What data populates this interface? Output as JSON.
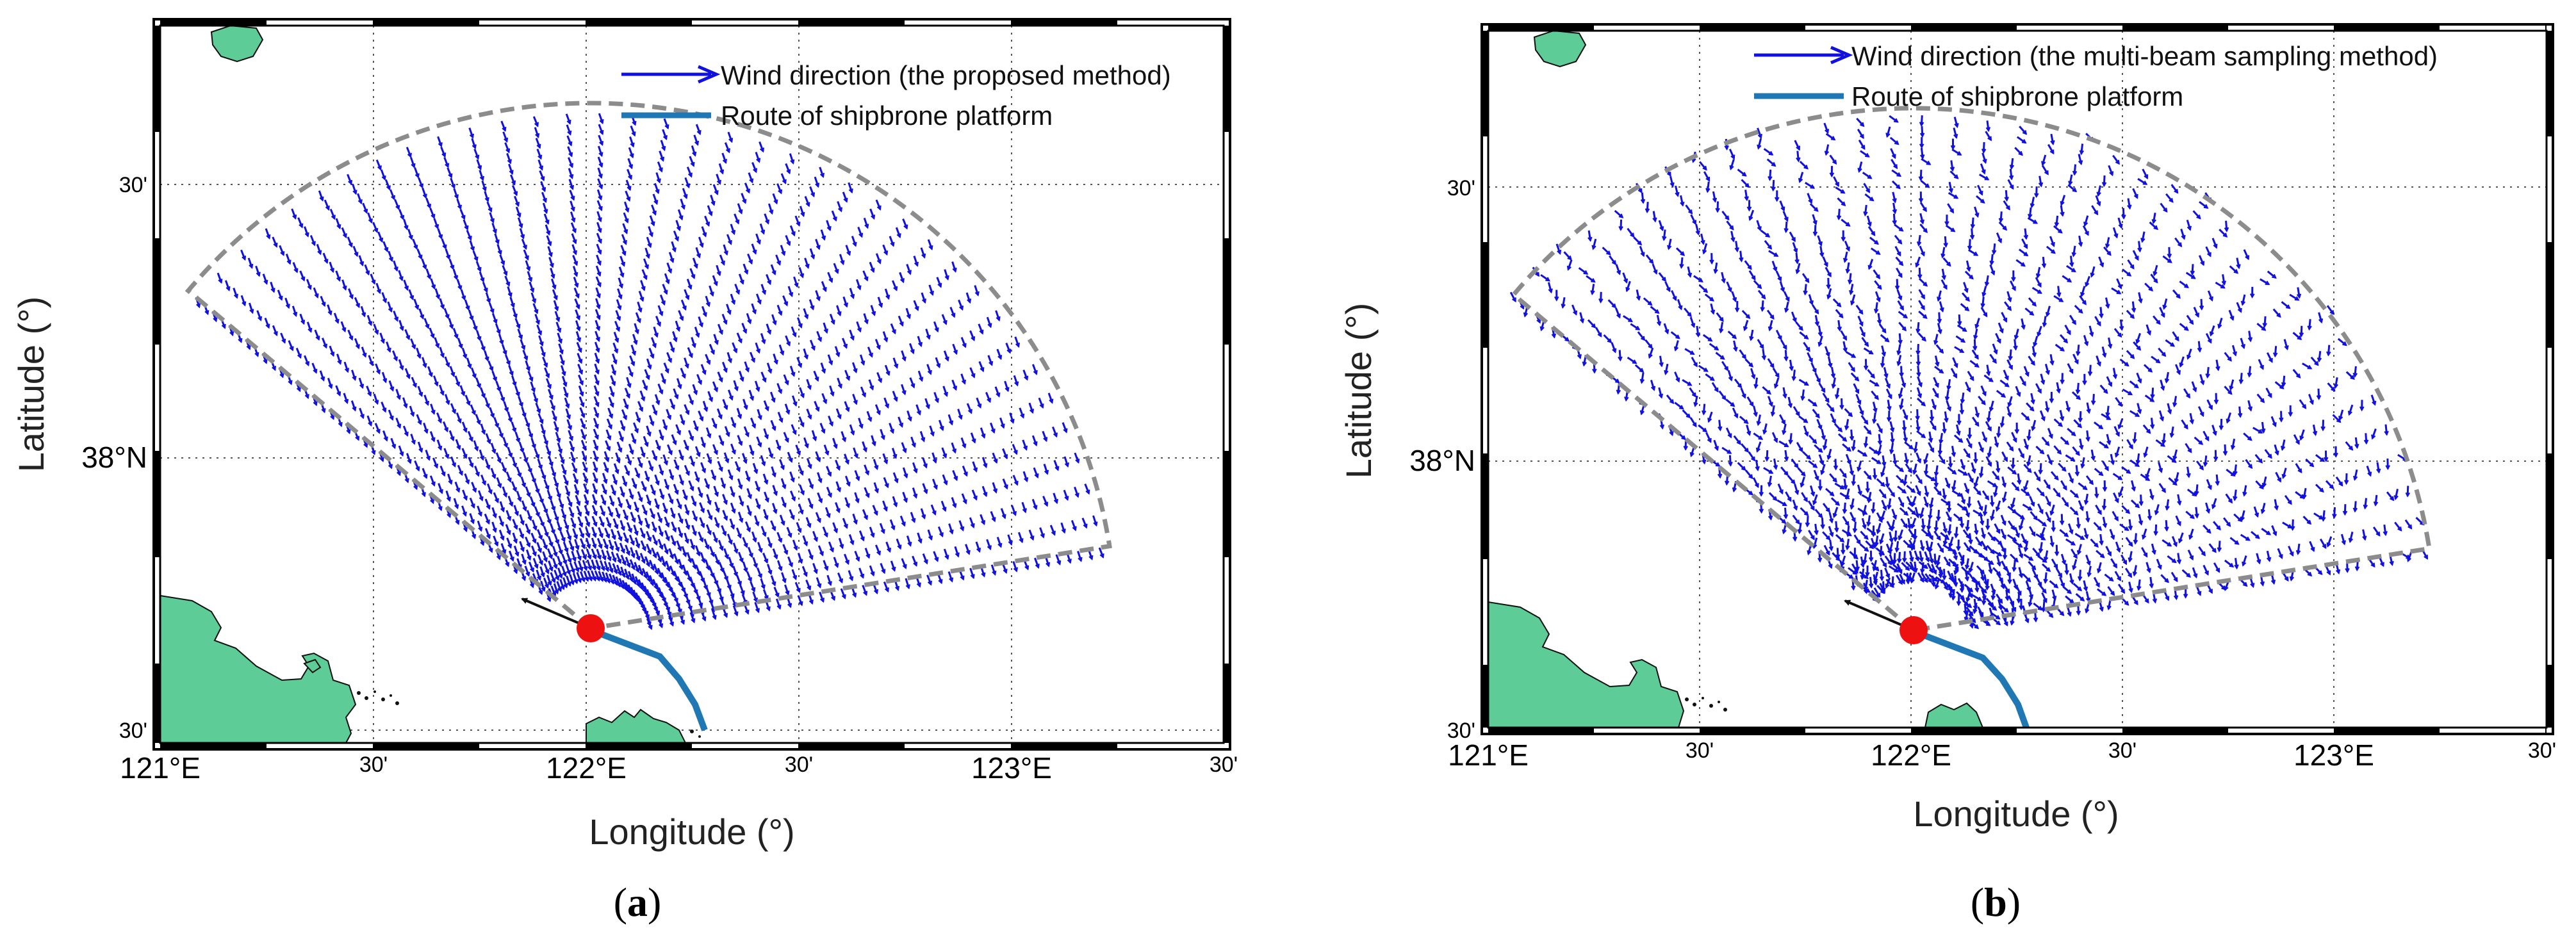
{
  "colors": {
    "wind_arrow": "#1010e0",
    "route": "#1f77b4",
    "land": "#5dcc96",
    "sector_outline": "#8c8c8c",
    "ship_marker": "#ee1111",
    "heading_arrow": "#111111",
    "frame_dark": "#000000",
    "frame_light": "#ffffff"
  },
  "panels": [
    {
      "id": "a",
      "caption": "(a)",
      "caption_letter": "a",
      "xlabel": "Longitude (°)",
      "ylabel": "Latitude (°)",
      "x_ticks_major": [
        "121°E",
        "122°E",
        "123°E"
      ],
      "x_ticks_minor": [
        "30'",
        "30'",
        "30'"
      ],
      "y_ticks": [
        "30'",
        "38°N",
        "30'"
      ],
      "legend": [
        {
          "label": "Wind direction (the proposed method)",
          "icon": "arrow-icon"
        },
        {
          "label": "Route of shipbrone platform",
          "icon": "line-icon"
        }
      ],
      "sampling_method": "proposed"
    },
    {
      "id": "b",
      "caption": "(b)",
      "caption_letter": "b",
      "xlabel": "Longitude (°)",
      "ylabel": "Latitude (°)",
      "x_ticks_major": [
        "121°E",
        "122°E",
        "123°E"
      ],
      "x_ticks_minor": [
        "30'",
        "30'",
        "30'"
      ],
      "y_ticks": [
        "30'",
        "38°N",
        "30'"
      ],
      "legend": [
        {
          "label": "Wind direction (the multi-beam sampling method)",
          "icon": "arrow-icon"
        },
        {
          "label": "Route of shipbrone platform",
          "icon": "line-icon"
        }
      ],
      "sampling_method": "multi-beam"
    }
  ]
}
